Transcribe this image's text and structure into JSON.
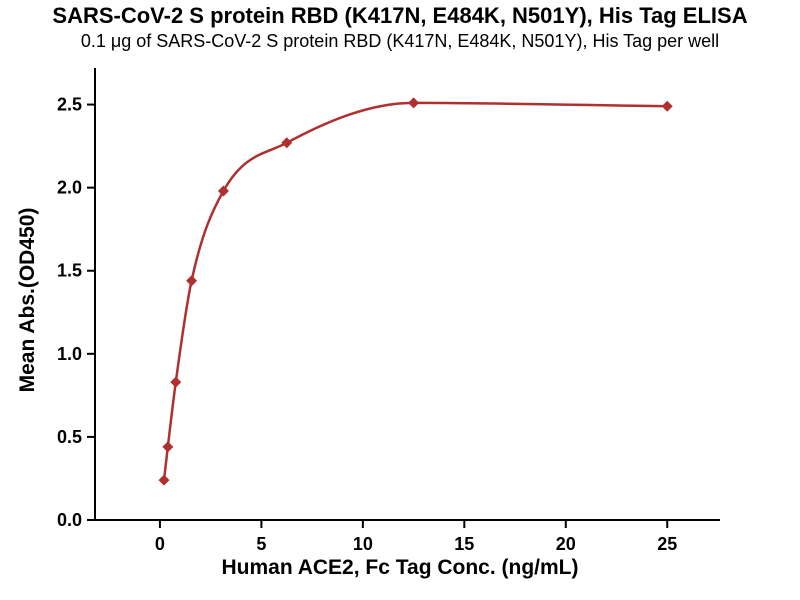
{
  "chart_data": {
    "type": "scatter",
    "title": "SARS-CoV-2 S protein RBD (K417N, E484K, N501Y), His Tag ELISA",
    "subtitle": "0.1 μg of SARS-CoV-2 S protein RBD (K417N, E484K, N501Y), His Tag per well",
    "xlabel": "Human ACE2, Fc Tag Conc. (ng/mL)",
    "ylabel": "Mean Abs.(OD450)",
    "x": [
      0.2,
      0.39,
      0.78,
      1.56,
      3.13,
      6.25,
      12.5,
      25
    ],
    "y": [
      0.24,
      0.44,
      0.83,
      1.44,
      1.98,
      2.27,
      2.51,
      2.49
    ],
    "xticks": [
      0,
      5,
      10,
      15,
      20,
      25
    ],
    "xticklabels": [
      "0",
      "5",
      "10",
      "15",
      "20",
      "25"
    ],
    "yticks": [
      0.0,
      0.5,
      1.0,
      1.5,
      2.0,
      2.5
    ],
    "yticklabels": [
      "0.0",
      "0.5",
      "1.0",
      "1.5",
      "2.0",
      "2.5"
    ],
    "xlim": [
      -3.2,
      27.6
    ],
    "ylim": [
      0,
      2.72
    ],
    "series_color": "#B03030",
    "axis_color": "#000000",
    "marker": "diamond",
    "grid": false,
    "legend": "none",
    "fit_line": true
  }
}
